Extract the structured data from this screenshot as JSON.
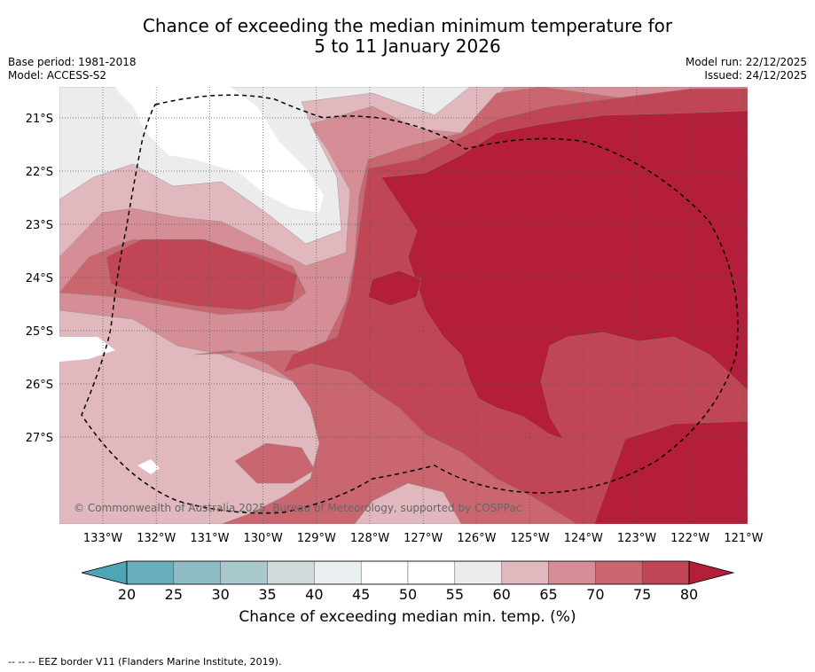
{
  "title": {
    "line1": "Chance of exceeding the median minimum temperature for",
    "line2": "5 to 11 January 2026"
  },
  "info": {
    "base_period": "Base period: 1981-2018",
    "model": "Model: ACCESS-S2",
    "model_run": "Model run: 22/12/2025",
    "issued": "Issued: 24/12/2025"
  },
  "copyright": "© Commonwealth of Australia 2025, Bureau of Meteorology, supported by COSPPac",
  "lon_labels": [
    "133°W",
    "132°W",
    "131°W",
    "130°W",
    "129°W",
    "128°W",
    "127°W",
    "126°W",
    "125°W",
    "124°W",
    "123°W",
    "122°W",
    "121°W"
  ],
  "lat_labels": [
    "21°S",
    "22°S",
    "23°S",
    "24°S",
    "25°S",
    "26°S",
    "27°S"
  ],
  "colorbar": {
    "ticks": [
      "20",
      "25",
      "30",
      "35",
      "40",
      "45",
      "50",
      "55",
      "60",
      "65",
      "70",
      "75",
      "80"
    ],
    "colors": [
      "#6aadbd",
      "#8dbbc6",
      "#a9c8cd",
      "#d1dadb",
      "#eaf0f2",
      "#ffffff",
      "#ffffff",
      "#ececec",
      "#e0b8be",
      "#d58d96",
      "#c96670",
      "#c04555"
    ],
    "under_color": "#4fa5b5",
    "over_color": "#b41e38",
    "label": "Chance of exceeding median min. temp. (%)"
  },
  "legend_note": "--  --  -- EEZ border V11 (Flanders Marine Institute, 2019).",
  "map_colors": {
    "c55": "#ececec",
    "c60": "#e0b8be",
    "c65": "#d58d96",
    "c70": "#c96670",
    "c75": "#c04555",
    "c80": "#b41e38"
  }
}
